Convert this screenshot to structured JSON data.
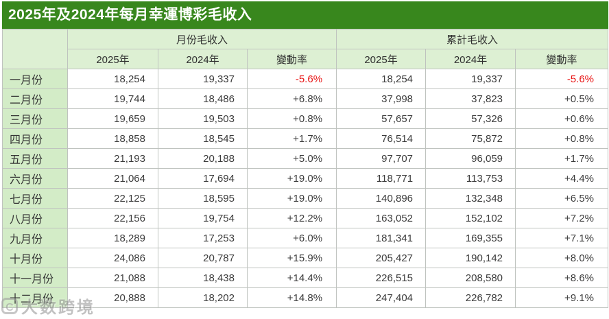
{
  "title": "2025年及2024年每月幸運博彩毛收入",
  "chart_data": {
    "type": "table",
    "title": "2025年及2024年每月幸運博彩毛收入",
    "column_groups": [
      "月份毛收入",
      "累計毛收入"
    ],
    "corner_label": "",
    "columns": [
      "",
      "2025年",
      "2024年",
      "變動率",
      "2025年",
      "2024年",
      "變動率"
    ],
    "rows": [
      [
        "一月份",
        "18,254",
        "19,337",
        "-5.6%",
        "18,254",
        "19,337",
        "-5.6%"
      ],
      [
        "二月份",
        "19,744",
        "18,486",
        "+6.8%",
        "37,998",
        "37,823",
        "+0.5%"
      ],
      [
        "三月份",
        "19,659",
        "19,503",
        "+0.8%",
        "57,657",
        "57,326",
        "+0.6%"
      ],
      [
        "四月份",
        "18,858",
        "18,545",
        "+1.7%",
        "76,514",
        "75,872",
        "+0.8%"
      ],
      [
        "五月份",
        "21,193",
        "20,188",
        "+5.0%",
        "97,707",
        "96,059",
        "+1.7%"
      ],
      [
        "六月份",
        "21,064",
        "17,694",
        "+19.0%",
        "118,771",
        "113,753",
        "+4.4%"
      ],
      [
        "七月份",
        "22,125",
        "18,595",
        "+19.0%",
        "140,896",
        "132,348",
        "+6.5%"
      ],
      [
        "八月份",
        "22,156",
        "19,754",
        "+12.2%",
        "163,052",
        "152,102",
        "+7.2%"
      ],
      [
        "九月份",
        "18,289",
        "17,253",
        "+6.0%",
        "181,341",
        "169,355",
        "+7.1%"
      ],
      [
        "十月份",
        "24,086",
        "20,787",
        "+15.9%",
        "205,427",
        "190,142",
        "+8.0%"
      ],
      [
        "十一月份",
        "21,088",
        "18,438",
        "+14.4%",
        "226,515",
        "208,580",
        "+8.6%"
      ],
      [
        "十二月份",
        "20,888",
        "18,202",
        "+14.8%",
        "247,404",
        "226,782",
        "+9.1%"
      ]
    ]
  },
  "watermark": {
    "logo": "C",
    "text": "大数跨境"
  },
  "colors": {
    "title_bar_green": "#38871d",
    "header_light_green": "#ddf0d3",
    "month_column_green": "#d3ecc7",
    "negative_red": "#e81313",
    "border_gray": "#bfc3bf",
    "body_text": "#3b3b3b"
  }
}
